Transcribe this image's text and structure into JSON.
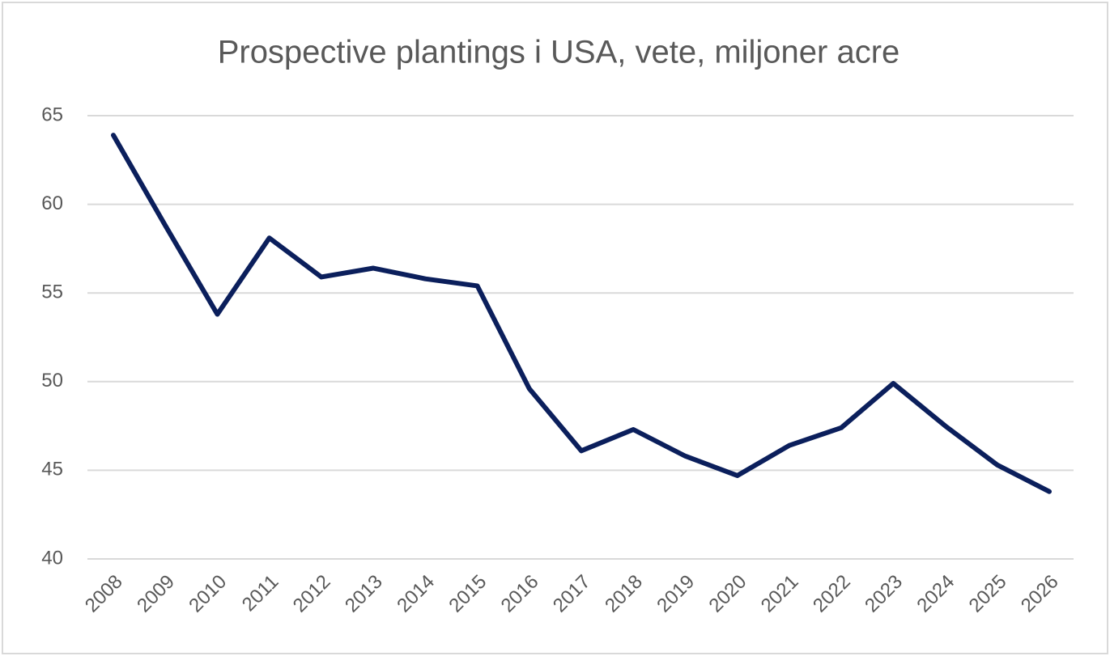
{
  "chart_data": {
    "type": "line",
    "title": "Prospective plantings i USA, vete, miljoner acre",
    "categories": [
      "2008",
      "2009",
      "2010",
      "2011",
      "2012",
      "2013",
      "2014",
      "2015",
      "2016",
      "2017",
      "2018",
      "2019",
      "2020",
      "2021",
      "2022",
      "2023",
      "2024",
      "2025",
      "2026"
    ],
    "series": [
      {
        "color": "#0b1f5c",
        "values": [
          63.9,
          58.8,
          53.8,
          58.1,
          55.9,
          56.4,
          55.8,
          55.4,
          49.6,
          46.1,
          47.3,
          45.8,
          44.7,
          46.4,
          47.4,
          49.9,
          47.5,
          45.3,
          43.8
        ]
      }
    ],
    "ylim": [
      40,
      65
    ],
    "yticks": [
      40,
      45,
      50,
      55,
      60,
      65
    ],
    "grid": true
  }
}
